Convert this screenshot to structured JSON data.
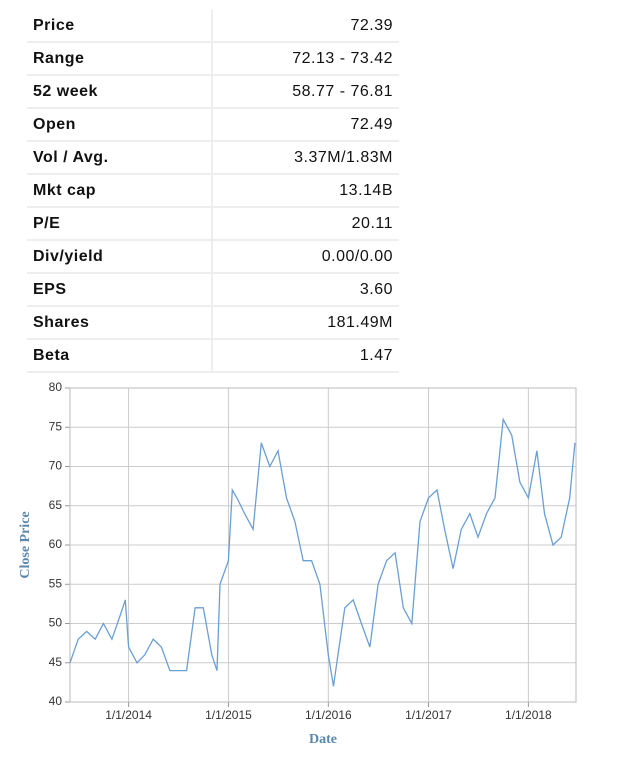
{
  "table": {
    "rows": [
      [
        "Price",
        "72.39"
      ],
      [
        "Range",
        "72.13 - 73.42"
      ],
      [
        "52 week",
        "58.77 - 76.81"
      ],
      [
        "Open",
        "72.49"
      ],
      [
        "Vol / Avg.",
        "3.37M/1.83M"
      ],
      [
        "Mkt cap",
        "13.14B"
      ],
      [
        "P/E",
        "20.11"
      ],
      [
        "Div/yield",
        "0.00/0.00"
      ],
      [
        "EPS",
        "3.60"
      ],
      [
        "Shares",
        "181.49M"
      ],
      [
        "Beta",
        "1.47"
      ]
    ]
  },
  "chart_data": {
    "type": "line",
    "xlabel": "Date",
    "ylabel": "Close Price",
    "color": "#6a9fd4",
    "grid": true,
    "xlim": [
      "2013-06-01",
      "2018-06-24"
    ],
    "ylim": [
      40,
      80
    ],
    "yticks": [
      40,
      45,
      50,
      55,
      60,
      65,
      70,
      75,
      80
    ],
    "xticks": [
      {
        "value": "2014-01-01",
        "label": "1/1/2014"
      },
      {
        "value": "2015-01-01",
        "label": "1/1/2015"
      },
      {
        "value": "2016-01-01",
        "label": "1/1/2016"
      },
      {
        "value": "2017-01-01",
        "label": "1/1/2017"
      },
      {
        "value": "2018-01-01",
        "label": "1/1/2018"
      }
    ],
    "x": [
      "2013-06-01",
      "2013-07-01",
      "2013-08-01",
      "2013-09-01",
      "2013-10-01",
      "2013-11-01",
      "2013-12-01",
      "2013-12-20",
      "2014-01-01",
      "2014-02-01",
      "2014-03-01",
      "2014-04-01",
      "2014-05-01",
      "2014-06-01",
      "2014-07-01",
      "2014-08-01",
      "2014-09-01",
      "2014-10-01",
      "2014-11-01",
      "2014-11-20",
      "2014-12-01",
      "2015-01-01",
      "2015-01-15",
      "2015-02-01",
      "2015-03-01",
      "2015-04-01",
      "2015-05-01",
      "2015-06-01",
      "2015-07-01",
      "2015-08-01",
      "2015-09-01",
      "2015-10-01",
      "2015-11-01",
      "2015-12-01",
      "2016-01-01",
      "2016-01-20",
      "2016-02-01",
      "2016-03-01",
      "2016-04-01",
      "2016-05-01",
      "2016-06-01",
      "2016-07-01",
      "2016-08-01",
      "2016-09-01",
      "2016-10-01",
      "2016-11-01",
      "2016-12-01",
      "2017-01-01",
      "2017-02-01",
      "2017-03-01",
      "2017-04-01",
      "2017-05-01",
      "2017-06-01",
      "2017-07-01",
      "2017-08-01",
      "2017-09-01",
      "2017-10-01",
      "2017-11-01",
      "2017-12-01",
      "2018-01-01",
      "2018-02-01",
      "2018-03-01",
      "2018-04-01",
      "2018-05-01",
      "2018-06-01",
      "2018-06-20"
    ],
    "values": [
      45,
      48,
      49,
      48,
      50,
      48,
      51,
      53,
      47,
      45,
      46,
      48,
      47,
      44,
      44,
      44,
      52,
      52,
      46,
      44,
      55,
      58,
      67,
      66,
      64,
      62,
      73,
      70,
      72,
      66,
      63,
      58,
      58,
      55,
      46,
      42,
      45,
      52,
      53,
      50,
      47,
      55,
      58,
      59,
      52,
      50,
      63,
      66,
      67,
      62,
      57,
      62,
      64,
      61,
      64,
      66,
      76,
      74,
      68,
      66,
      72,
      64,
      60,
      61,
      66,
      73
    ]
  }
}
